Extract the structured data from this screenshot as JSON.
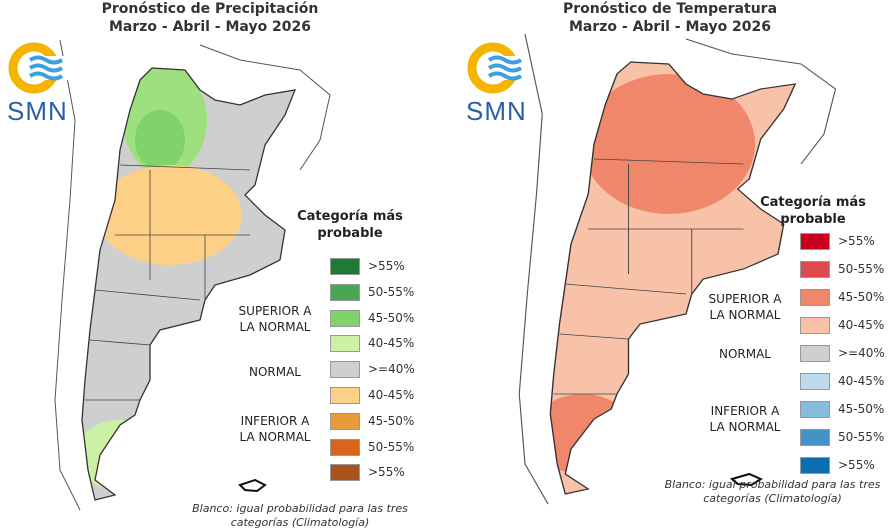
{
  "precipitation": {
    "title_line1": "Pronóstico de Precipitación",
    "title_line2": "Marzo - Abril - Mayo 2026",
    "logo_text": "SMN",
    "legend_title_line1": "Categoría más",
    "legend_title_line2": "probable",
    "categories": {
      "superior": [
        "SUPERIOR A",
        "LA NORMAL"
      ],
      "normal": "NORMAL",
      "inferior": [
        "INFERIOR A",
        "LA NORMAL"
      ]
    },
    "legend": [
      {
        "label": ">55%",
        "color": "#1f7a35"
      },
      {
        "label": "50-55%",
        "color": "#4aa651"
      },
      {
        "label": "45-50%",
        "color": "#7fd36a"
      },
      {
        "label": "40-45%",
        "color": "#ccf0a4"
      },
      {
        "label": ">=40%",
        "color": "#cfcfcf"
      },
      {
        "label": "40-45%",
        "color": "#fdd088"
      },
      {
        "label": "45-50%",
        "color": "#e79b3a"
      },
      {
        "label": "50-55%",
        "color": "#d9641d"
      },
      {
        "label": ">55%",
        "color": "#a9521c"
      }
    ],
    "footnote_line1": "Blanco: igual probabilidad para las tres",
    "footnote_line2": "categorías (Climatología)"
  },
  "temperature": {
    "title_line1": "Pronóstico de Temperatura",
    "title_line2": "Marzo - Abril - Mayo 2026",
    "logo_text": "SMN",
    "legend_title_line1": "Categoría más",
    "legend_title_line2": "probable",
    "categories": {
      "superior": [
        "SUPERIOR A",
        "LA NORMAL"
      ],
      "normal": "NORMAL",
      "inferior": [
        "INFERIOR A",
        "LA NORMAL"
      ]
    },
    "legend": [
      {
        "label": ">55%",
        "color": "#c8001e"
      },
      {
        "label": "50-55%",
        "color": "#e04a4d"
      },
      {
        "label": "45-50%",
        "color": "#f0876a"
      },
      {
        "label": "40-45%",
        "color": "#f7c2a8"
      },
      {
        "label": ">=40%",
        "color": "#cfcfcf"
      },
      {
        "label": "40-45%",
        "color": "#bcdcec"
      },
      {
        "label": "45-50%",
        "color": "#86bddd"
      },
      {
        "label": "50-55%",
        "color": "#4393c6"
      },
      {
        "label": ">55%",
        "color": "#0a6eb0"
      }
    ],
    "footnote_line1": "Blanco: igual probabilidad para las tres",
    "footnote_line2": "categorías (Climatología)"
  }
}
